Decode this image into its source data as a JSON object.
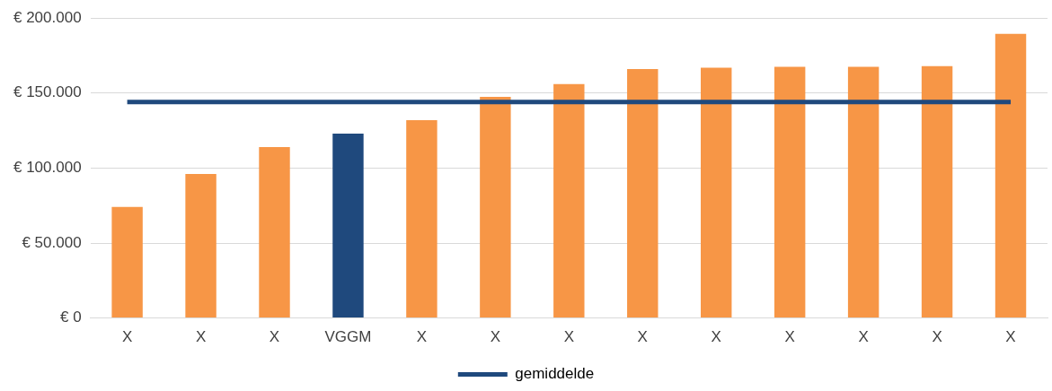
{
  "chart_data": {
    "type": "bar",
    "categories": [
      "X",
      "X",
      "X",
      "VGGM",
      "X",
      "X",
      "X",
      "X",
      "X",
      "X",
      "X",
      "X",
      "X"
    ],
    "series": [
      {
        "type": "bar",
        "colors": [
          "#f79646",
          "#f79646",
          "#f79646",
          "#1f497d",
          "#f79646",
          "#f79646",
          "#f79646",
          "#f79646",
          "#f79646",
          "#f79646",
          "#f79646",
          "#f79646",
          "#f79646"
        ],
        "values": [
          74000,
          96000,
          114000,
          123000,
          132000,
          147500,
          156000,
          166000,
          167000,
          167500,
          167500,
          168000,
          189500
        ]
      },
      {
        "type": "line",
        "name": "gemiddelde",
        "color": "#1f497d",
        "values": [
          144000,
          144000,
          144000,
          144000,
          144000,
          144000,
          144000,
          144000,
          144000,
          144000,
          144000,
          144000,
          144000
        ]
      }
    ],
    "ylim": [
      0,
      200000
    ],
    "yticks": [
      {
        "value": 0,
        "label": "€ 0"
      },
      {
        "value": 50000,
        "label": "€ 50.000"
      },
      {
        "value": 100000,
        "label": "€ 100.000"
      },
      {
        "value": 150000,
        "label": "€ 150.000"
      },
      {
        "value": 200000,
        "label": "€ 200.000"
      }
    ],
    "grid": "y",
    "legend": "bottom",
    "marker": "none"
  }
}
